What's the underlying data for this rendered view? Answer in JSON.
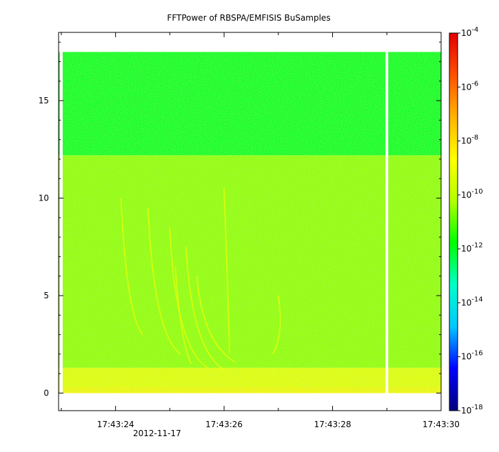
{
  "chart_data": {
    "type": "heatmap",
    "title": "FFTPower of RBSPA/EMFISIS  BuSamples",
    "xlabel": "",
    "ylabel": "",
    "x_tick_labels": [
      "17:43:24",
      "17:43:26",
      "17:43:28",
      "17:43:30"
    ],
    "x_tick_values": [
      24,
      26,
      28,
      30
    ],
    "x_date_label": "2012-11-17",
    "xlim": [
      22.95,
      30.0
    ],
    "y_tick_labels": [
      "0",
      "5",
      "10",
      "15"
    ],
    "y_tick_values": [
      0,
      5,
      10,
      15
    ],
    "ylim": [
      -0.9,
      18.5
    ],
    "data_ymax": 17.5,
    "gap_times": [
      23.0,
      29.0
    ],
    "colorbar": {
      "scale": "log",
      "range": [
        1e-18,
        0.0001
      ],
      "tick_exponents": [
        -18,
        -16,
        -14,
        -12,
        -10,
        -8,
        -6,
        -4
      ],
      "tick_base": "10",
      "colors": [
        "#000080",
        "#0000ff",
        "#00c8ff",
        "#00ffc8",
        "#00ff00",
        "#b4ff00",
        "#ffff00",
        "#ffb400",
        "#ff5000",
        "#e00000"
      ]
    },
    "bands": [
      {
        "freq_range": [
          0,
          0.3
        ],
        "level_exp": -8.5
      },
      {
        "freq_range": [
          0.3,
          1.3
        ],
        "level_exp": -9.0
      },
      {
        "freq_range": [
          1.3,
          12.2
        ],
        "level_exp": -10.5
      },
      {
        "freq_range": [
          12.2,
          17.5
        ],
        "level_exp": -12.0
      }
    ]
  }
}
